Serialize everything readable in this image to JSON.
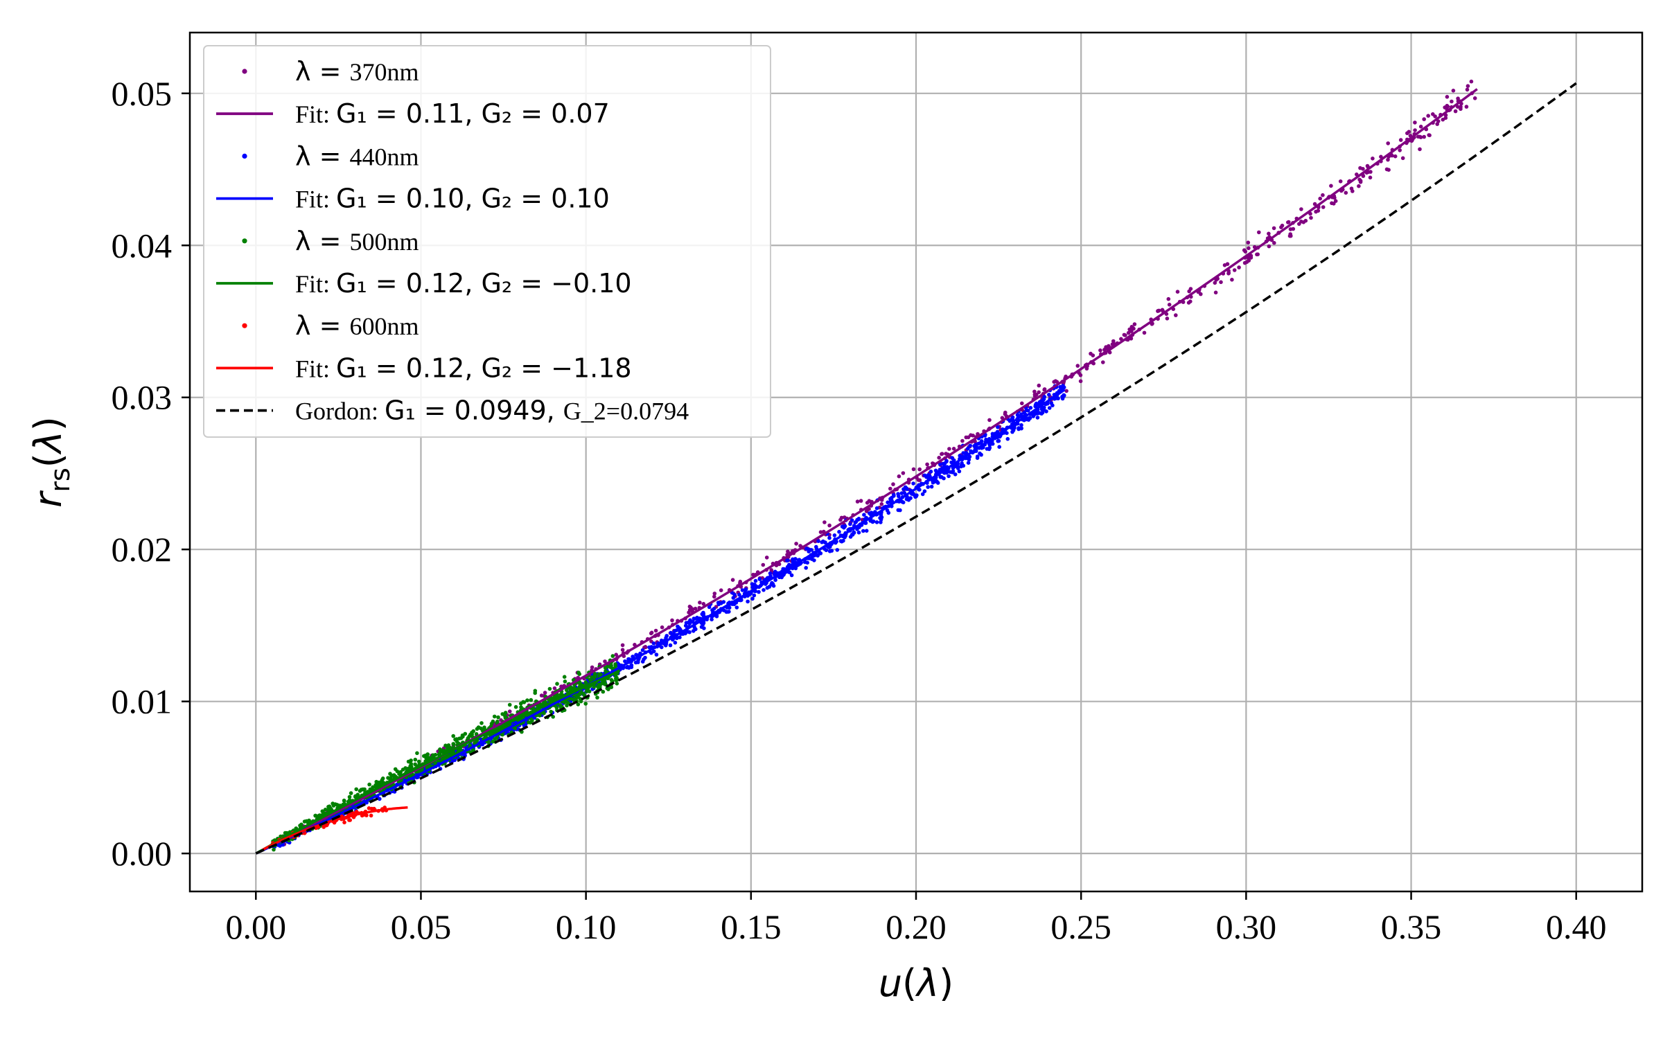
{
  "chart_data": {
    "type": "scatter",
    "xlabel": "u(λ)",
    "ylabel": "r_rs(λ)",
    "xlim": [
      -0.02,
      0.42
    ],
    "ylim": [
      -0.0025,
      0.054
    ],
    "xticks": [
      "0.00",
      "0.05",
      "0.10",
      "0.15",
      "0.20",
      "0.25",
      "0.30",
      "0.35",
      "0.40"
    ],
    "yticks": [
      "0.00",
      "0.01",
      "0.02",
      "0.03",
      "0.04",
      "0.05"
    ],
    "grid": true,
    "legend_position": "upper-left",
    "series": [
      {
        "name": "λ = 370nm",
        "kind": "scatter",
        "color": "#800080",
        "u_range": [
          0.005,
          0.37
        ],
        "G1": 0.11,
        "G2": 0.07,
        "spread": 0.00045,
        "count": 600
      },
      {
        "name": "Fit: G1 = 0.11, G2 = 0.07",
        "kind": "fit",
        "color": "#800080",
        "G1": 0.11,
        "G2": 0.07,
        "u_range": [
          0.0,
          0.37
        ]
      },
      {
        "name": "λ = 440nm",
        "kind": "scatter",
        "color": "#0000ff",
        "u_range": [
          0.005,
          0.245
        ],
        "G1": 0.1,
        "G2": 0.1,
        "spread": 0.00035,
        "count": 1300
      },
      {
        "name": "Fit: G1 = 0.10, G2 = 0.10",
        "kind": "fit",
        "color": "#0000ff",
        "G1": 0.1,
        "G2": 0.1,
        "u_range": [
          0.0,
          0.245
        ]
      },
      {
        "name": "λ = 500nm",
        "kind": "scatter",
        "color": "#008000",
        "u_range": [
          0.005,
          0.11
        ],
        "G1": 0.12,
        "G2": -0.1,
        "spread": 0.0005,
        "count": 900
      },
      {
        "name": "Fit: G1 = 0.12, G2 = −0.10",
        "kind": "fit",
        "color": "#008000",
        "G1": 0.12,
        "G2": -0.1,
        "u_range": [
          0.0,
          0.11
        ]
      },
      {
        "name": "λ = 600nm",
        "kind": "scatter",
        "color": "#ff0000",
        "u_range": [
          0.003,
          0.04
        ],
        "G1": 0.12,
        "G2": -1.18,
        "spread": 0.00015,
        "count": 90
      },
      {
        "name": "Fit: G1 = 0.12, G2 = −1.18",
        "kind": "fit",
        "color": "#ff0000",
        "G1": 0.12,
        "G2": -1.18,
        "u_range": [
          0.002,
          0.046
        ]
      },
      {
        "name": "Gordon: G1 = 0.0949, G_2=0.0794",
        "kind": "dashed",
        "color": "#000000",
        "G1": 0.0949,
        "G2": 0.0794,
        "u_range": [
          0.0,
          0.4
        ]
      }
    ]
  },
  "legend": {
    "entries": [
      {
        "prefix": "",
        "math": "λ = ",
        "text": "370nm",
        "kind": "scatter",
        "color": "#800080"
      },
      {
        "prefix": "Fit: ",
        "math": "G₁ = 0.11, G₂ = 0.07",
        "text": "",
        "kind": "fit",
        "color": "#800080"
      },
      {
        "prefix": "",
        "math": "λ = ",
        "text": "440nm",
        "kind": "scatter",
        "color": "#0000ff"
      },
      {
        "prefix": "Fit: ",
        "math": "G₁ = 0.10, G₂ = 0.10",
        "text": "",
        "kind": "fit",
        "color": "#0000ff"
      },
      {
        "prefix": "",
        "math": "λ = ",
        "text": "500nm",
        "kind": "scatter",
        "color": "#008000"
      },
      {
        "prefix": "Fit: ",
        "math": "G₁ = 0.12, G₂ = −0.10",
        "text": "",
        "kind": "fit",
        "color": "#008000"
      },
      {
        "prefix": "",
        "math": "λ = ",
        "text": "600nm",
        "kind": "scatter",
        "color": "#ff0000"
      },
      {
        "prefix": "Fit: ",
        "math": "G₁ = 0.12, G₂ = −1.18",
        "text": "",
        "kind": "fit",
        "color": "#ff0000"
      },
      {
        "prefix": "Gordon: ",
        "math": "G₁ = 0.0949, ",
        "text": "G_2=0.0794",
        "kind": "dashed",
        "color": "#000000"
      }
    ]
  }
}
